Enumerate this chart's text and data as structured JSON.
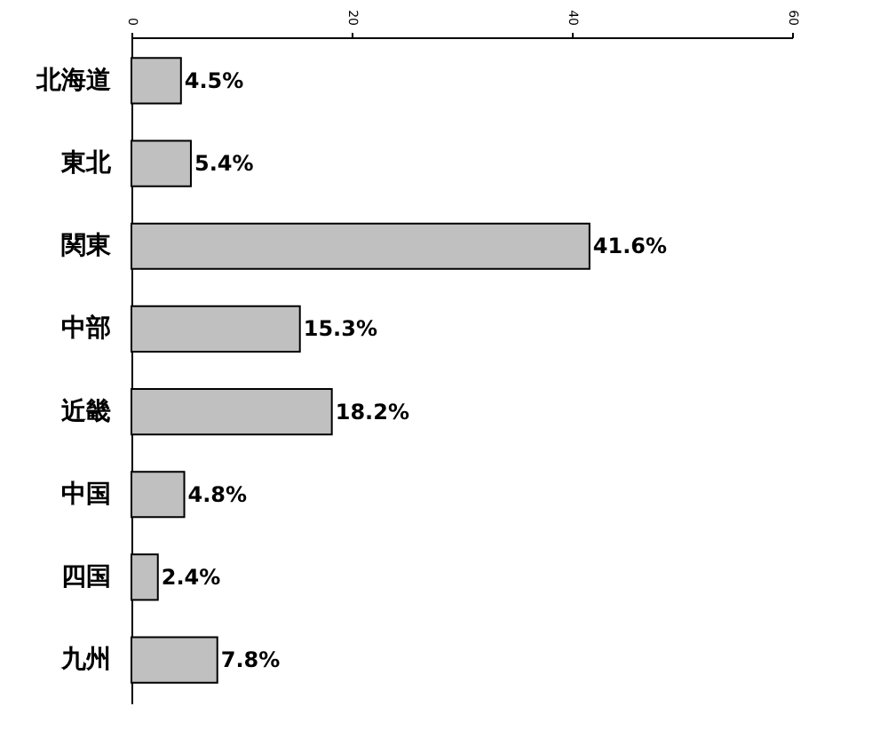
{
  "chart_data": {
    "type": "bar",
    "orientation": "horizontal",
    "categories": [
      "北海道",
      "東北",
      "関東",
      "中部",
      "近畿",
      "中国",
      "四国",
      "九州"
    ],
    "values": [
      4.5,
      5.4,
      41.6,
      15.3,
      18.2,
      4.8,
      2.4,
      7.8
    ],
    "value_labels": [
      "4.5%",
      "5.4%",
      "41.6%",
      "15.3%",
      "18.2%",
      "4.8%",
      "2.4%",
      "7.8%"
    ],
    "color": "#c0c0c0",
    "xlim": [
      0,
      60
    ],
    "xticks": [
      0,
      20,
      40,
      60
    ],
    "grid": false
  }
}
